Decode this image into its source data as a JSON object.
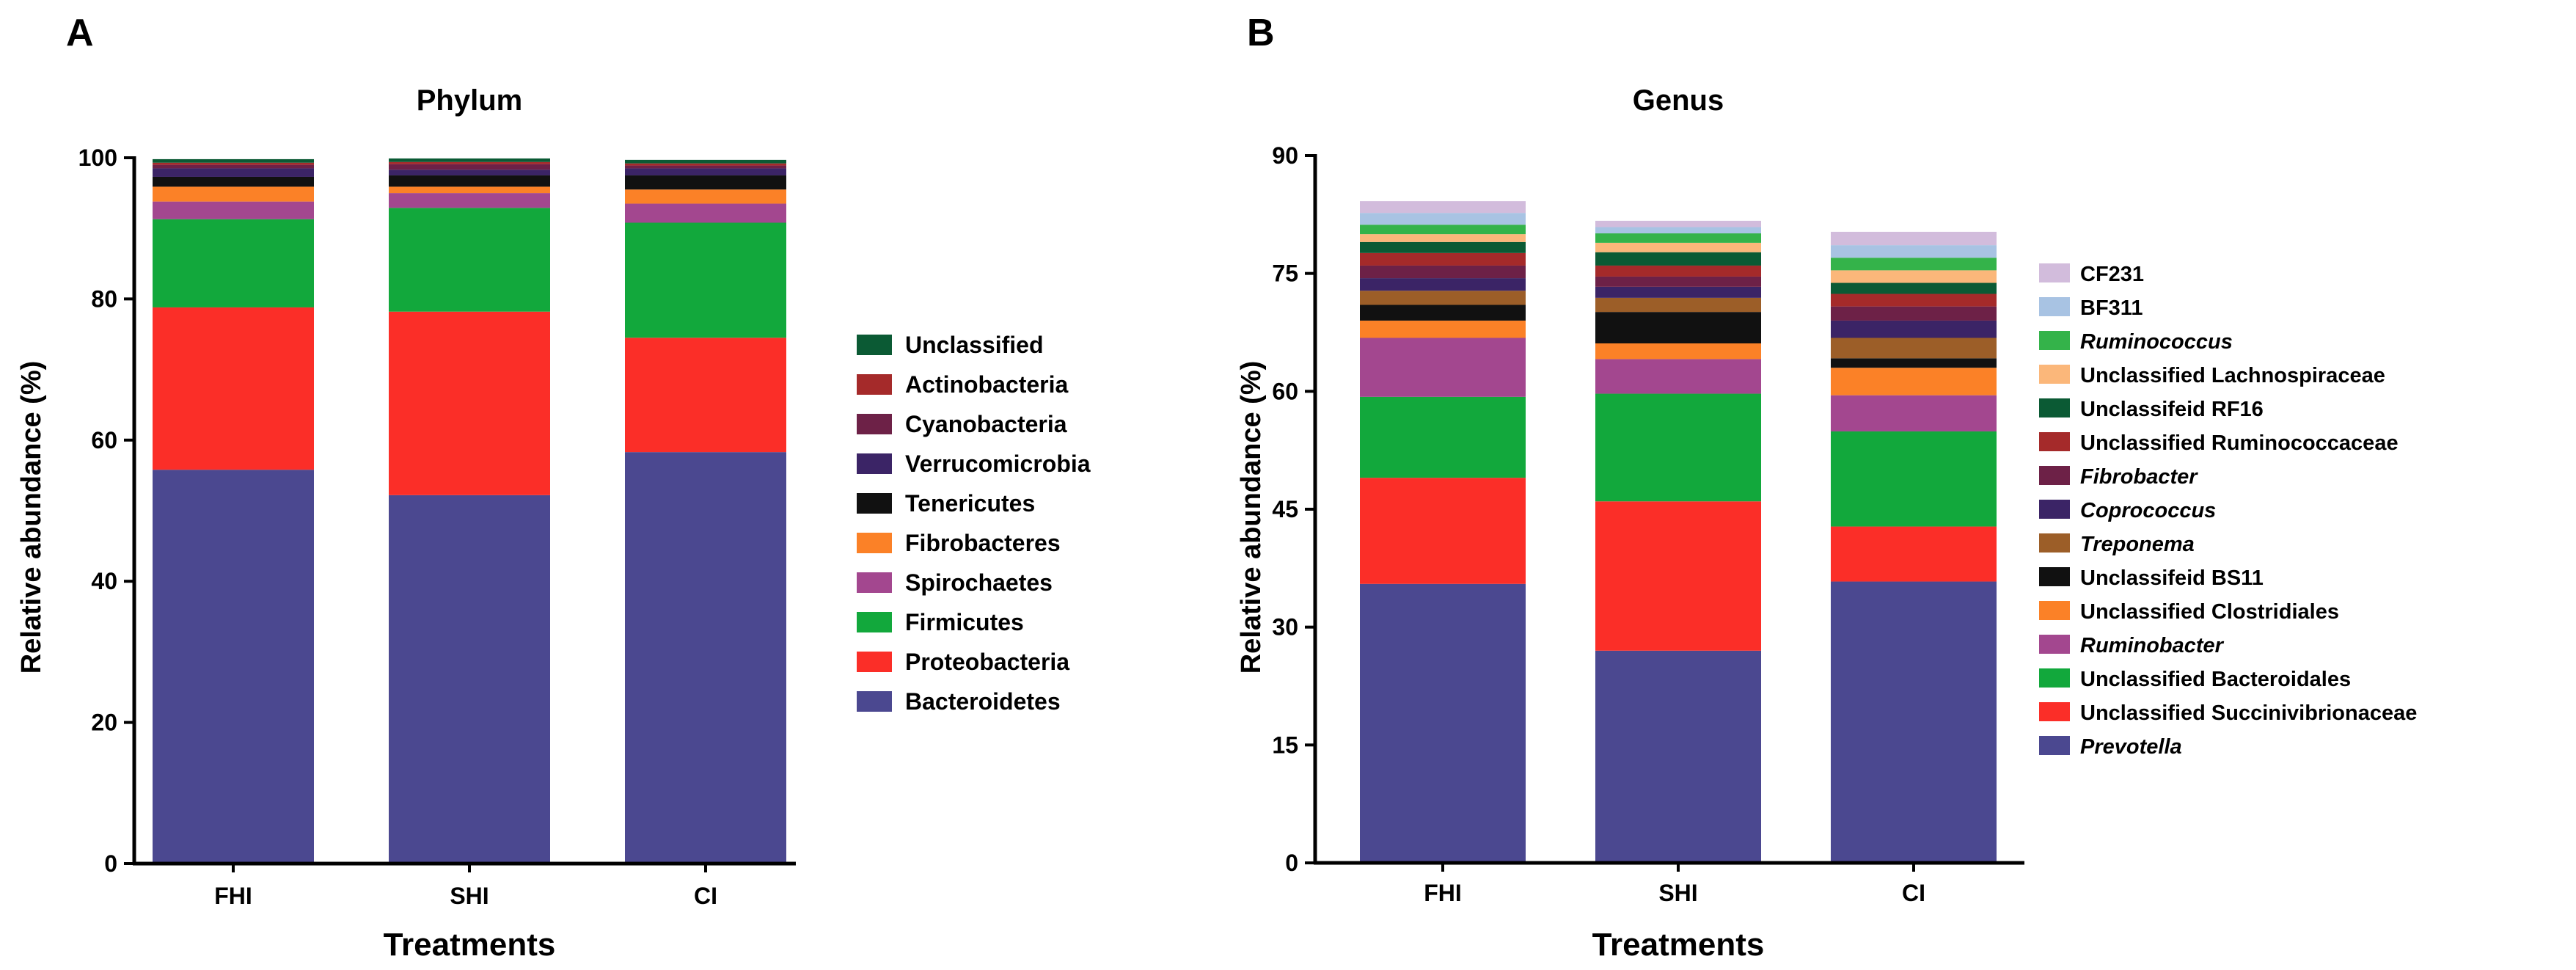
{
  "chart_data": [
    {
      "panel": "A",
      "type": "bar",
      "stacked": true,
      "title": "Phylum",
      "xlabel": "Treatments",
      "ylabel": "Relative abundance (%)",
      "ylim": [
        0,
        100
      ],
      "yticks": [
        0,
        20,
        40,
        60,
        80,
        100
      ],
      "categories": [
        "FHI",
        "SHI",
        "CI"
      ],
      "legend_position": "right",
      "series": [
        {
          "name": "Bacteroidetes",
          "color": "#4b4890",
          "values": [
            55.8,
            52.2,
            58.3
          ]
        },
        {
          "name": "Proteobacteria",
          "color": "#fb2e28",
          "values": [
            23.0,
            26.0,
            16.2
          ]
        },
        {
          "name": "Firmicutes",
          "color": "#12a83c",
          "values": [
            12.5,
            14.7,
            16.3
          ]
        },
        {
          "name": "Spirochaetes",
          "color": "#a3478f",
          "values": [
            2.5,
            2.1,
            2.7
          ]
        },
        {
          "name": "Fibrobacteres",
          "color": "#fb8127",
          "values": [
            2.1,
            0.9,
            2.0
          ]
        },
        {
          "name": "Tenericutes",
          "color": "#111111",
          "values": [
            1.4,
            1.6,
            2.0
          ]
        },
        {
          "name": "Verrucomicrobia",
          "color": "#3b2466",
          "values": [
            1.2,
            0.8,
            1.0
          ]
        },
        {
          "name": "Cyanobacteria",
          "color": "#6d2147",
          "values": [
            0.5,
            0.8,
            0.4
          ]
        },
        {
          "name": "Actinobacteria",
          "color": "#a52a2a",
          "values": [
            0.3,
            0.3,
            0.3
          ]
        },
        {
          "name": "Unclassified",
          "color": "#0b5a34",
          "values": [
            0.5,
            0.5,
            0.5
          ]
        }
      ]
    },
    {
      "panel": "B",
      "type": "bar",
      "stacked": true,
      "title": "Genus",
      "xlabel": "Treatments",
      "ylabel": "Relative abundance (%)",
      "ylim": [
        0,
        90
      ],
      "yticks": [
        0,
        15,
        30,
        45,
        60,
        75,
        90
      ],
      "categories": [
        "FHI",
        "SHI",
        "CI"
      ],
      "legend_position": "right",
      "series": [
        {
          "name": "Prevotella",
          "italic": true,
          "color": "#4b4890",
          "values": [
            35.5,
            27.0,
            35.8
          ]
        },
        {
          "name": "Unclassified Succinivibrionaceae",
          "italic": false,
          "color": "#fb2e28",
          "values": [
            13.5,
            19.0,
            7.0
          ]
        },
        {
          "name": "Unclassified Bacteroidales",
          "italic": false,
          "color": "#12a83c",
          "values": [
            10.3,
            13.7,
            12.1
          ]
        },
        {
          "name": "Ruminobacter",
          "italic": true,
          "color": "#a3478f",
          "values": [
            7.5,
            4.4,
            4.6
          ]
        },
        {
          "name": "Unclassified Clostridiales",
          "italic": false,
          "color": "#fb8127",
          "values": [
            2.2,
            2.0,
            3.5
          ]
        },
        {
          "name": "Unclassifeid BS11",
          "italic": false,
          "color": "#111111",
          "values": [
            2.0,
            4.0,
            1.2
          ]
        },
        {
          "name": "Treponema",
          "italic": true,
          "color": "#9c5e28",
          "values": [
            1.8,
            1.8,
            2.6
          ]
        },
        {
          "name": "Coprococcus",
          "italic": true,
          "color": "#3b2466",
          "values": [
            1.6,
            1.4,
            2.2
          ]
        },
        {
          "name": "Fibrobacter",
          "italic": true,
          "color": "#6d2147",
          "values": [
            1.6,
            1.3,
            1.8
          ]
        },
        {
          "name": "Unclassified Ruminococcaceae",
          "italic": false,
          "color": "#a52a2a",
          "values": [
            1.6,
            1.4,
            1.6
          ]
        },
        {
          "name": "Unclassifeid RF16",
          "italic": false,
          "color": "#0b5a34",
          "values": [
            1.4,
            1.7,
            1.4
          ]
        },
        {
          "name": "Unclassified Lachnospiraceae",
          "italic": false,
          "color": "#fbb77a",
          "values": [
            1.0,
            1.2,
            1.6
          ]
        },
        {
          "name": "Ruminococcus",
          "italic": true,
          "color": "#34b34a",
          "values": [
            1.2,
            1.2,
            1.6
          ]
        },
        {
          "name": "BF311",
          "italic": false,
          "color": "#a8c3e3",
          "values": [
            1.5,
            0.8,
            1.6
          ]
        },
        {
          "name": "CF231",
          "italic": false,
          "color": "#d2bcdc",
          "values": [
            1.5,
            0.8,
            1.7
          ]
        }
      ]
    }
  ]
}
